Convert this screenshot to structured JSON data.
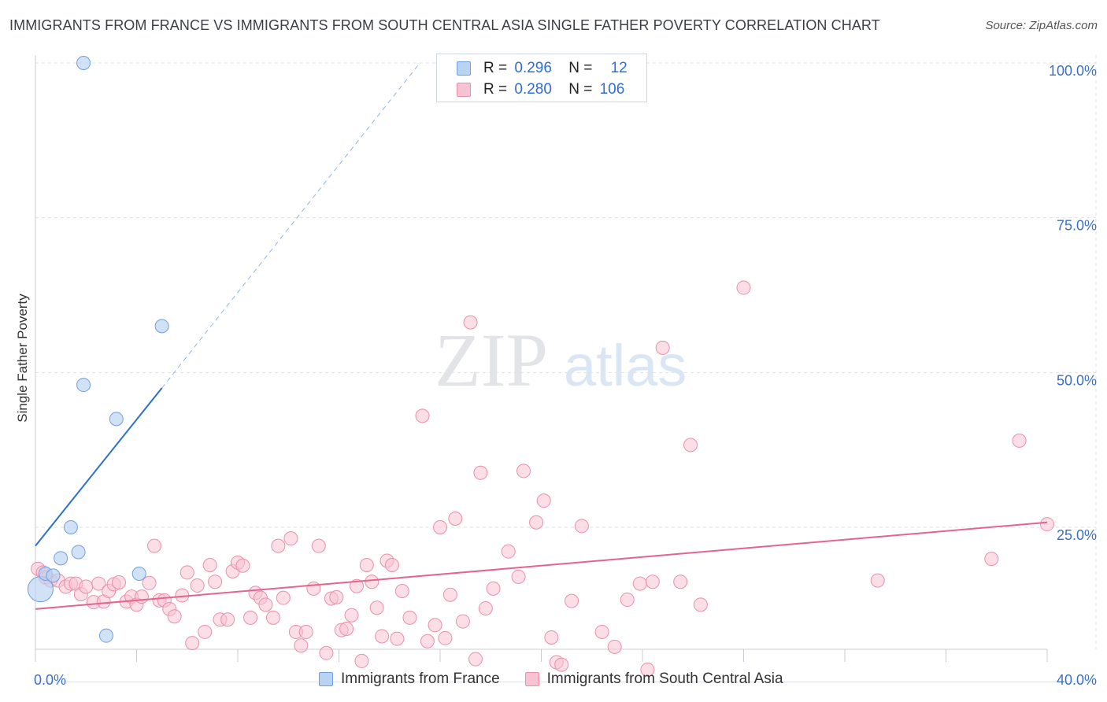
{
  "title": "IMMIGRANTS FROM FRANCE VS IMMIGRANTS FROM SOUTH CENTRAL ASIA SINGLE FATHER POVERTY CORRELATION CHART",
  "source": "Source: ZipAtlas.com",
  "watermark": {
    "zip": "ZIP",
    "atlas": "atlas"
  },
  "colors": {
    "france_fill": "#b9d3f3",
    "france_stroke": "#6f9fe0",
    "france_line": "#2b6fd0",
    "asia_fill": "#f7c3d2",
    "asia_stroke": "#ea8fab",
    "asia_line": "#e4648e",
    "tick": "#3b6fc4",
    "grid": "#dde1e6"
  },
  "stats": {
    "france": {
      "r_label": "R =",
      "r": "0.296",
      "n_label": "N =",
      "n": "12"
    },
    "asia": {
      "r_label": "R =",
      "r": "0.280",
      "n_label": "N =",
      "n": "106"
    }
  },
  "chart_data": {
    "type": "scatter",
    "title": "IMMIGRANTS FROM FRANCE VS IMMIGRANTS FROM SOUTH CENTRAL ASIA SINGLE FATHER POVERTY CORRELATION CHART",
    "xlabel": "",
    "ylabel": "Single Father Poverty",
    "xlim": [
      0,
      40
    ],
    "ylim": [
      0,
      102
    ],
    "x_tick_labels": [
      "0.0%",
      "40.0%"
    ],
    "y_ticks": [
      25,
      50,
      75,
      100
    ],
    "y_tick_labels": [
      "25.0%",
      "50.0%",
      "75.0%",
      "100.0%"
    ],
    "grid": true,
    "legend_position": "top-center",
    "series": [
      {
        "name": "Immigrants from France",
        "points": [
          [
            0.2,
            15.0
          ],
          [
            0.4,
            17.5
          ],
          [
            0.7,
            17.2
          ],
          [
            1.0,
            20.0
          ],
          [
            1.4,
            25.0
          ],
          [
            1.7,
            21.0
          ],
          [
            1.9,
            48.0
          ],
          [
            1.9,
            100.0
          ],
          [
            2.8,
            7.5
          ],
          [
            3.2,
            42.5
          ],
          [
            4.1,
            17.5
          ],
          [
            5.0,
            57.5
          ]
        ],
        "trend": {
          "x0": 0,
          "y0": 22.0,
          "x1": 5.0,
          "y1": 47.5,
          "dashed_to_x": 15.2,
          "dashed_to_y": 100.0
        }
      },
      {
        "name": "Immigrants from South Central Asia",
        "points": [
          [
            0.1,
            18.3
          ],
          [
            0.3,
            17.7
          ],
          [
            0.4,
            16.9
          ],
          [
            0.6,
            16.4
          ],
          [
            0.9,
            16.4
          ],
          [
            1.2,
            15.4
          ],
          [
            1.4,
            15.9
          ],
          [
            1.6,
            15.9
          ],
          [
            1.8,
            14.2
          ],
          [
            2.0,
            15.4
          ],
          [
            2.3,
            12.9
          ],
          [
            2.5,
            15.9
          ],
          [
            2.7,
            13.0
          ],
          [
            2.9,
            14.7
          ],
          [
            3.1,
            15.8
          ],
          [
            3.3,
            16.1
          ],
          [
            3.6,
            13.0
          ],
          [
            3.8,
            13.8
          ],
          [
            4.0,
            12.5
          ],
          [
            4.2,
            13.8
          ],
          [
            4.5,
            16.0
          ],
          [
            4.7,
            22.0
          ],
          [
            4.9,
            13.2
          ],
          [
            5.1,
            13.2
          ],
          [
            5.3,
            11.8
          ],
          [
            5.5,
            10.6
          ],
          [
            5.8,
            14.0
          ],
          [
            6.0,
            17.7
          ],
          [
            6.2,
            6.3
          ],
          [
            6.4,
            15.6
          ],
          [
            6.7,
            8.1
          ],
          [
            6.9,
            18.9
          ],
          [
            7.1,
            16.2
          ],
          [
            7.3,
            10.1
          ],
          [
            7.6,
            10.1
          ],
          [
            7.8,
            17.9
          ],
          [
            8.0,
            19.3
          ],
          [
            8.2,
            18.8
          ],
          [
            8.5,
            10.4
          ],
          [
            8.7,
            14.4
          ],
          [
            8.9,
            13.6
          ],
          [
            9.1,
            12.5
          ],
          [
            9.4,
            10.4
          ],
          [
            9.6,
            22.0
          ],
          [
            9.8,
            13.6
          ],
          [
            10.1,
            23.2
          ],
          [
            10.3,
            8.1
          ],
          [
            10.5,
            5.9
          ],
          [
            10.7,
            8.1
          ],
          [
            11.0,
            15.1
          ],
          [
            11.2,
            22.0
          ],
          [
            11.5,
            4.7
          ],
          [
            11.7,
            13.5
          ],
          [
            11.9,
            13.7
          ],
          [
            12.1,
            8.4
          ],
          [
            12.3,
            8.6
          ],
          [
            12.5,
            10.8
          ],
          [
            12.7,
            15.5
          ],
          [
            12.9,
            3.4
          ],
          [
            13.1,
            18.9
          ],
          [
            13.3,
            16.2
          ],
          [
            13.5,
            12.0
          ],
          [
            13.7,
            7.4
          ],
          [
            13.9,
            19.6
          ],
          [
            14.1,
            18.9
          ],
          [
            14.3,
            7.0
          ],
          [
            14.5,
            14.7
          ],
          [
            14.8,
            10.4
          ],
          [
            15.3,
            43.0
          ],
          [
            15.5,
            6.6
          ],
          [
            15.8,
            9.2
          ],
          [
            16.0,
            25.0
          ],
          [
            16.2,
            7.1
          ],
          [
            16.4,
            14.1
          ],
          [
            16.6,
            26.4
          ],
          [
            16.9,
            9.8
          ],
          [
            17.2,
            58.1
          ],
          [
            17.4,
            3.7
          ],
          [
            17.6,
            33.8
          ],
          [
            17.8,
            11.9
          ],
          [
            18.1,
            15.1
          ],
          [
            18.7,
            21.1
          ],
          [
            19.1,
            17.0
          ],
          [
            19.3,
            34.1
          ],
          [
            19.8,
            25.8
          ],
          [
            20.1,
            29.3
          ],
          [
            20.4,
            7.2
          ],
          [
            20.6,
            3.2
          ],
          [
            20.8,
            2.8
          ],
          [
            21.2,
            13.1
          ],
          [
            21.6,
            25.2
          ],
          [
            22.4,
            8.1
          ],
          [
            22.9,
            5.7
          ],
          [
            23.4,
            13.3
          ],
          [
            23.9,
            15.9
          ],
          [
            24.2,
            2.0
          ],
          [
            24.4,
            16.2
          ],
          [
            24.8,
            54.0
          ],
          [
            25.5,
            16.2
          ],
          [
            25.9,
            38.3
          ],
          [
            26.3,
            12.5
          ],
          [
            28.0,
            63.7
          ],
          [
            33.3,
            16.4
          ],
          [
            37.8,
            19.9
          ],
          [
            38.9,
            39.0
          ],
          [
            40.0,
            25.5
          ]
        ],
        "trend": {
          "x0": 0,
          "y0": 11.8,
          "x1": 40.0,
          "y1": 25.8
        }
      }
    ]
  },
  "legend": {
    "france_label": "Immigrants from France",
    "asia_label": "Immigrants from South Central Asia"
  }
}
